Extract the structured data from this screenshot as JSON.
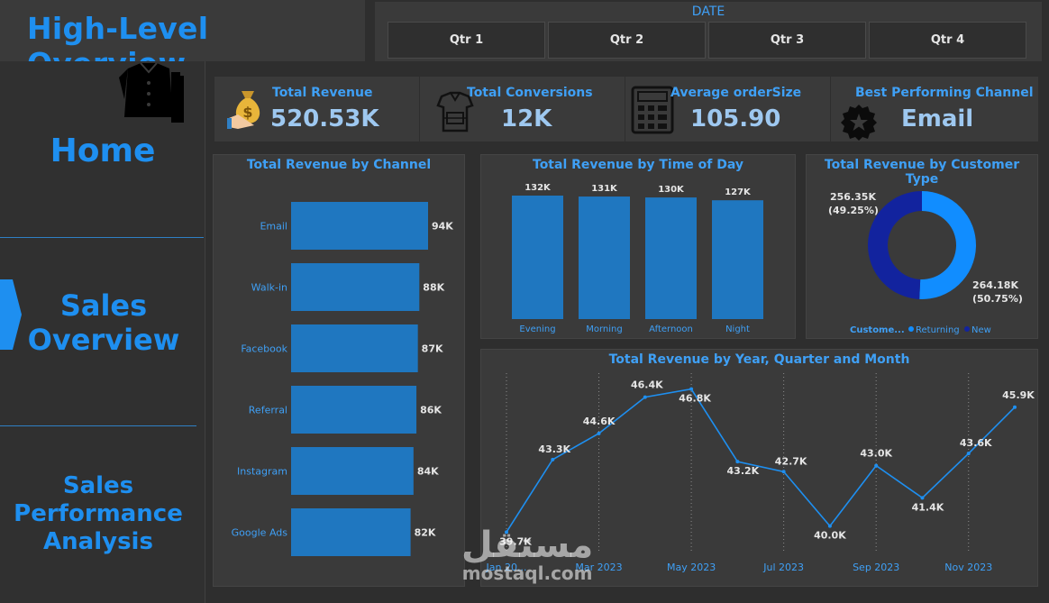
{
  "header": {
    "title": "High-Level Overview"
  },
  "date_slicer": {
    "label": "DATE",
    "quarters": [
      "Qtr 1",
      "Qtr 2",
      "Qtr 3",
      "Qtr 4"
    ]
  },
  "nav": {
    "items": [
      "Home",
      "Sales Overview",
      "Sales Performance Analysis"
    ],
    "active_index": 1
  },
  "kpis": [
    {
      "title": "Total Revenue",
      "value": "520.53K",
      "icon": "money-bag-icon"
    },
    {
      "title": "Total Conversions",
      "value": "12K",
      "icon": "shirt-box-icon"
    },
    {
      "title": "Average orderSize",
      "value": "105.90",
      "icon": "calculator-icon"
    },
    {
      "title": "Best Performing Channel",
      "value": "Email",
      "icon": "star-badge-icon"
    }
  ],
  "colors": {
    "accent": "#1e8ff0",
    "bar": "#1f77c0",
    "donut_returning": "#118dff",
    "donut_new": "#12239e",
    "line": "#1e8ff0"
  },
  "chart_data": [
    {
      "type": "bar",
      "orientation": "horizontal",
      "title": "Total Revenue by Channel",
      "categories": [
        "Email",
        "Walk-in",
        "Facebook",
        "Referral",
        "Instagram",
        "Google Ads"
      ],
      "values": [
        94,
        88,
        87,
        86,
        84,
        82
      ],
      "labels": [
        "94K",
        "88K",
        "87K",
        "86K",
        "84K",
        "82K"
      ],
      "unit": "K"
    },
    {
      "type": "bar",
      "title": "Total Revenue by Time of Day",
      "categories": [
        "Evening",
        "Morning",
        "Afternoon",
        "Night"
      ],
      "values": [
        132,
        131,
        130,
        127
      ],
      "labels": [
        "132K",
        "131K",
        "130K",
        "127K"
      ],
      "unit": "K"
    },
    {
      "type": "pie",
      "title": "Total Revenue by Customer Type",
      "legend_title": "Custome...",
      "slices": [
        {
          "name": "Returning",
          "value": 264.18,
          "label": "264.18K",
          "pct_label": "(50.75%)"
        },
        {
          "name": "New",
          "value": 256.35,
          "label": "256.35K",
          "pct_label": "(49.25%)"
        }
      ]
    },
    {
      "type": "line",
      "title": "Total Revenue by Year, Quarter and Month",
      "x": [
        "Jan 2023",
        "Feb 2023",
        "Mar 2023",
        "Apr 2023",
        "May 2023",
        "Jun 2023",
        "Jul 2023",
        "Aug 2023",
        "Sep 2023",
        "Oct 2023",
        "Nov 2023",
        "Dec 2023"
      ],
      "y": [
        39.7,
        43.3,
        44.6,
        46.4,
        46.8,
        43.2,
        42.7,
        40.0,
        43.0,
        41.4,
        43.6,
        45.9
      ],
      "point_labels": [
        "39.7K",
        "43.3K",
        "44.6K",
        "46.4K",
        "46.8K",
        "43.2K",
        "42.7K",
        "40.0K",
        "43.0K",
        "41.4K",
        "43.6K",
        "45.9K"
      ],
      "tick_labels": [
        "Jan 20...",
        "Mar 2023",
        "May 2023",
        "Jul 2023",
        "Sep 2023",
        "Nov 2023"
      ],
      "ylim": [
        39,
        47.5
      ]
    }
  ],
  "watermark": {
    "arabic": "مستقل",
    "latin": "mostaql.com"
  }
}
